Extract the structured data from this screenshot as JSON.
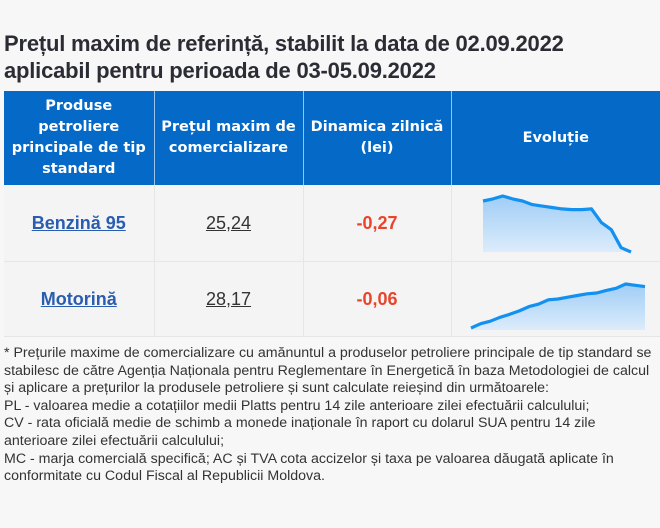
{
  "title": {
    "line1": "Prețul maxim de referință, stabilit la data de 02.09.2022",
    "line2": "aplicabil pentru perioada de 03-05.09.2022"
  },
  "table": {
    "headers": [
      "Produse petroliere principale de tip standard",
      "Prețul maxim de comercializare",
      "Dinamica zilnică (lei)",
      "Evoluție"
    ],
    "rows": [
      {
        "product": "Benzină 95",
        "price": "25,24",
        "delta": "-0,27",
        "trend": [
          25.95,
          25.98,
          26.02,
          25.98,
          25.95,
          25.9,
          25.88,
          25.86,
          25.84,
          25.83,
          25.83,
          25.84,
          25.65,
          25.55,
          25.3,
          25.24
        ]
      },
      {
        "product": "Motorină",
        "price": "28,17",
        "delta": "-0,06",
        "trend": [
          27.2,
          27.3,
          27.36,
          27.45,
          27.52,
          27.6,
          27.7,
          27.76,
          27.86,
          27.88,
          27.92,
          27.96,
          28.0,
          28.02,
          28.08,
          28.13,
          28.23,
          28.2,
          28.17
        ]
      }
    ]
  },
  "footnote": [
    "* Prețurile maxime de comercializare cu amănuntul a produselor petroliere principale de tip standard se stabilesc de către Agenția Naționala pentru Reglementare în Energetică în baza Metodologiei de calcul și aplicare a prețurilor la produsele petroliere și sunt calculate reieșind din următoarele:",
    "PL - valoarea medie a cotațiilor medii Platts pentru 14 zile anterioare zilei efectuării calculului;",
    "CV - rata oficială medie de schimb a monede inaționale în raport cu dolarul SUA pentru 14 zile anterioare zilei efectuării calculului;",
    "MC - marja comercială specifică; AC și TVA cota accizelor și taxa pe valoarea dăugată aplicate în conformitate cu Codul Fiscal al Republicii Moldova."
  ],
  "colors": {
    "header_bg": "#0569c8",
    "link": "#2a5db0",
    "negative": "#e8452c",
    "spark_line": "#1291f0",
    "spark_fill_top": "#9fcdf6",
    "spark_fill_bottom": "#dcecfb"
  }
}
